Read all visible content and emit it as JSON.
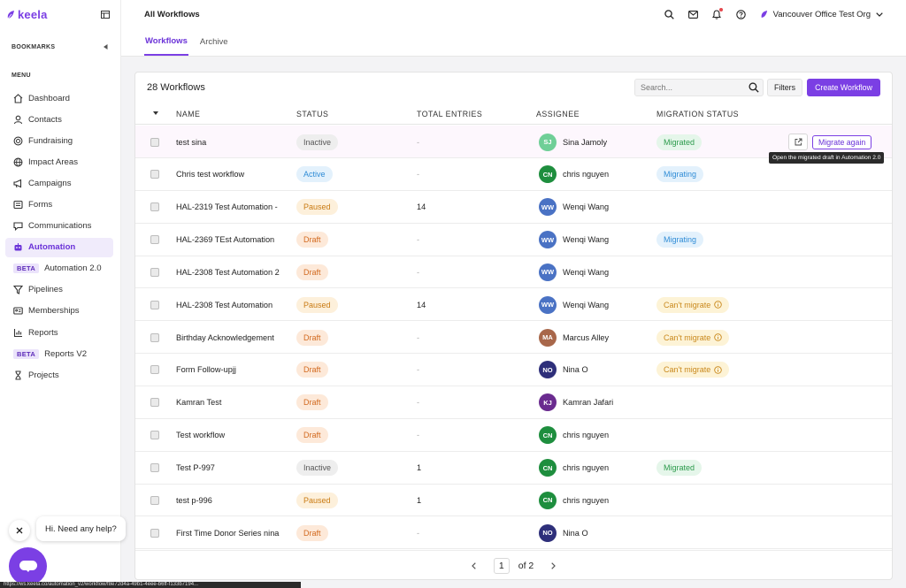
{
  "sidebar": {
    "logo_text": "keela",
    "bookmarks_label": "BOOKMARKS",
    "menu_label": "MENU",
    "items": [
      {
        "label": "Dashboard",
        "icon": "home-icon"
      },
      {
        "label": "Contacts",
        "icon": "user-icon"
      },
      {
        "label": "Fundraising",
        "icon": "coin-icon"
      },
      {
        "label": "Impact Areas",
        "icon": "globe-icon"
      },
      {
        "label": "Campaigns",
        "icon": "megaphone-icon"
      },
      {
        "label": "Forms",
        "icon": "form-icon"
      },
      {
        "label": "Communications",
        "icon": "chat-icon"
      },
      {
        "label": "Automation",
        "icon": "robot-icon",
        "active": true
      },
      {
        "label": "Automation 2.0",
        "badge": "BETA"
      },
      {
        "label": "Pipelines",
        "icon": "funnel-icon"
      },
      {
        "label": "Memberships",
        "icon": "card-icon"
      },
      {
        "label": "Reports",
        "icon": "chart-icon"
      },
      {
        "label": "Reports V2",
        "badge": "BETA"
      },
      {
        "label": "Projects",
        "icon": "hourglass-icon"
      }
    ]
  },
  "topbar": {
    "title": "All Workflows",
    "org_name": "Vancouver Office Test Org"
  },
  "tabs": [
    {
      "label": "Workflows",
      "active": true
    },
    {
      "label": "Archive",
      "active": false
    }
  ],
  "toolbar": {
    "count_label": "28 Workflows",
    "search_placeholder": "Search...",
    "filters_label": "Filters",
    "create_label": "Create Workflow"
  },
  "columns": {
    "name": "NAME",
    "status": "STATUS",
    "total_entries": "TOTAL ENTRIES",
    "assignee": "ASSIGNEE",
    "migration_status": "MIGRATION STATUS"
  },
  "rows": [
    {
      "name": "test sina",
      "status": "Inactive",
      "entries": "-",
      "initials": "SJ",
      "assignee": "Sina Jamoly",
      "avatar_color": "#6fcf97",
      "migration": "Migrated"
    },
    {
      "name": "Chris test workflow",
      "status": "Active",
      "entries": "-",
      "initials": "CN",
      "assignee": "chris nguyen",
      "avatar_color": "#1e8e3e",
      "migration": "Migrating"
    },
    {
      "name": "HAL-2319 Test Automation -",
      "status": "Paused",
      "entries": "14",
      "initials": "WW",
      "assignee": "Wenqi Wang",
      "avatar_color": "#4a72c4",
      "migration": ""
    },
    {
      "name": "HAL-2369 TEst Automation",
      "status": "Draft",
      "entries": "-",
      "initials": "WW",
      "assignee": "Wenqi Wang",
      "avatar_color": "#4a72c4",
      "migration": "Migrating"
    },
    {
      "name": "HAL-2308 Test Automation 2",
      "status": "Draft",
      "entries": "-",
      "initials": "WW",
      "assignee": "Wenqi Wang",
      "avatar_color": "#4a72c4",
      "migration": ""
    },
    {
      "name": "HAL-2308 Test Automation",
      "status": "Paused",
      "entries": "14",
      "initials": "WW",
      "assignee": "Wenqi Wang",
      "avatar_color": "#4a72c4",
      "migration": "Can't migrate"
    },
    {
      "name": "Birthday Acknowledgement",
      "status": "Draft",
      "entries": "-",
      "initials": "MA",
      "assignee": "Marcus Alley",
      "avatar_color": "#a8674a",
      "migration": "Can't migrate"
    },
    {
      "name": "Form Follow-upjj",
      "status": "Draft",
      "entries": "-",
      "initials": "NO",
      "assignee": "Nina O",
      "avatar_color": "#2e2f7a",
      "migration": "Can't migrate"
    },
    {
      "name": "Kamran Test",
      "status": "Draft",
      "entries": "-",
      "initials": "KJ",
      "assignee": "Kamran Jafari",
      "avatar_color": "#6a2b8f",
      "migration": ""
    },
    {
      "name": "Test workflow",
      "status": "Draft",
      "entries": "-",
      "initials": "CN",
      "assignee": "chris nguyen",
      "avatar_color": "#1e8e3e",
      "migration": ""
    },
    {
      "name": "Test P-997",
      "status": "Inactive",
      "entries": "1",
      "initials": "CN",
      "assignee": "chris nguyen",
      "avatar_color": "#1e8e3e",
      "migration": "Migrated"
    },
    {
      "name": "test p-996",
      "status": "Paused",
      "entries": "1",
      "initials": "CN",
      "assignee": "chris nguyen",
      "avatar_color": "#1e8e3e",
      "migration": ""
    },
    {
      "name": "First Time Donor Series nina",
      "status": "Draft",
      "entries": "-",
      "initials": "NO",
      "assignee": "Nina O",
      "avatar_color": "#2e2f7a",
      "migration": ""
    }
  ],
  "row_actions": {
    "migrate_again_label": "Migrate again",
    "tooltip": "Open the migrated draft in Automation 2.0"
  },
  "pagination": {
    "current": "1",
    "of_label": "of 2"
  },
  "chat": {
    "message": "Hi. Need any help?"
  },
  "status_bar": {
    "url": "https://ws.keela.co/automation_v2/workflow/f8e72d4a-49b1-4eee-b6ff-f133b7194..."
  },
  "colors": {
    "accent": "#7b3fe4"
  }
}
